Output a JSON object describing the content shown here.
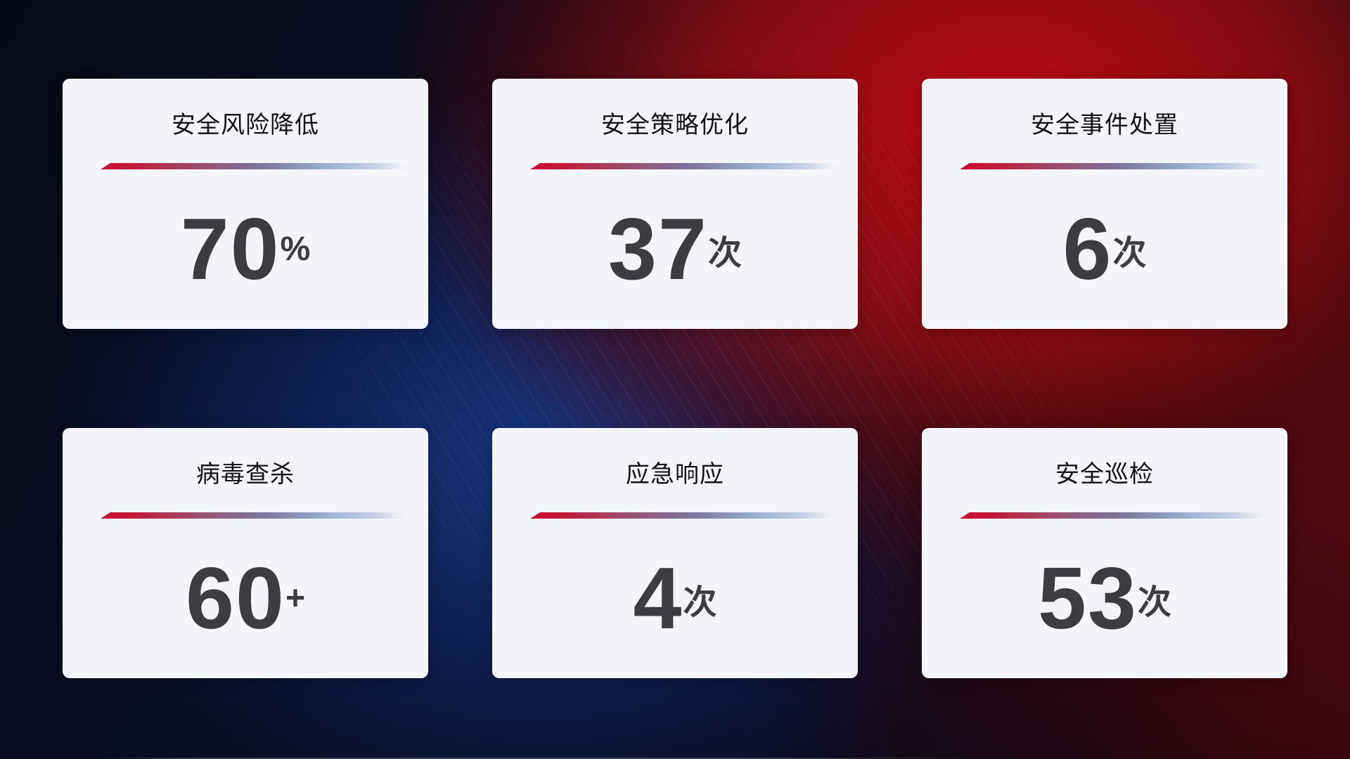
{
  "page": {
    "kind": "security-operations-stat-dashboard",
    "background": {
      "base_color": "#06080f",
      "blue_glow": "#18388a",
      "red_glow": "#b00d14",
      "dark_maroon_corner": "#400a0e",
      "streak_color": "#8eace4"
    },
    "card": {
      "background": "#f4f5f8",
      "title_color": "#121316",
      "value_color": "#3c3d40",
      "divider_gradient_start": "#c50e32",
      "divider_gradient_mid": "#7e7aa4",
      "divider_gradient_end": "#c6d1e5"
    }
  },
  "cards": [
    {
      "title": "安全风险降低",
      "value": "70",
      "unit": "%"
    },
    {
      "title": "安全策略优化",
      "value": "37",
      "unit": "次"
    },
    {
      "title": "安全事件处置",
      "value": "6",
      "unit": "次"
    },
    {
      "title": "病毒查杀",
      "value": "60",
      "unit": "+"
    },
    {
      "title": "应急响应",
      "value": "4",
      "unit": "次"
    },
    {
      "title": "安全巡检",
      "value": "53",
      "unit": "次"
    }
  ]
}
